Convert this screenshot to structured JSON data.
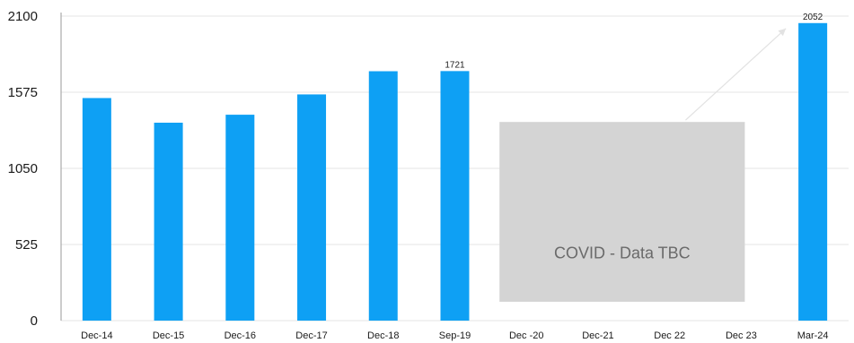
{
  "chart_data": {
    "type": "bar",
    "categories": [
      "Dec-14",
      "Dec-15",
      "Dec-16",
      "Dec-17",
      "Dec-18",
      "Sep-19",
      "Dec -20",
      "Dec-21",
      "Dec 22",
      "Dec 23",
      "Mar-24"
    ],
    "values": [
      1535,
      1365,
      1420,
      1560,
      1720,
      1721,
      null,
      null,
      null,
      null,
      2052
    ],
    "data_labels": {
      "Sep-19": "1721",
      "Mar-24": "2052"
    },
    "ylim": [
      0,
      2100
    ],
    "yticks": [
      "0",
      "525",
      "1050",
      "1575",
      "2100"
    ],
    "title": "",
    "xlabel": "",
    "ylabel": "",
    "bar_color": "#0ea0f4",
    "gridlines": true,
    "annotation": {
      "text": "COVID - Data TBC",
      "from": "Dec -20",
      "to": "Dec 23",
      "fill": "#d4d4d4"
    }
  }
}
